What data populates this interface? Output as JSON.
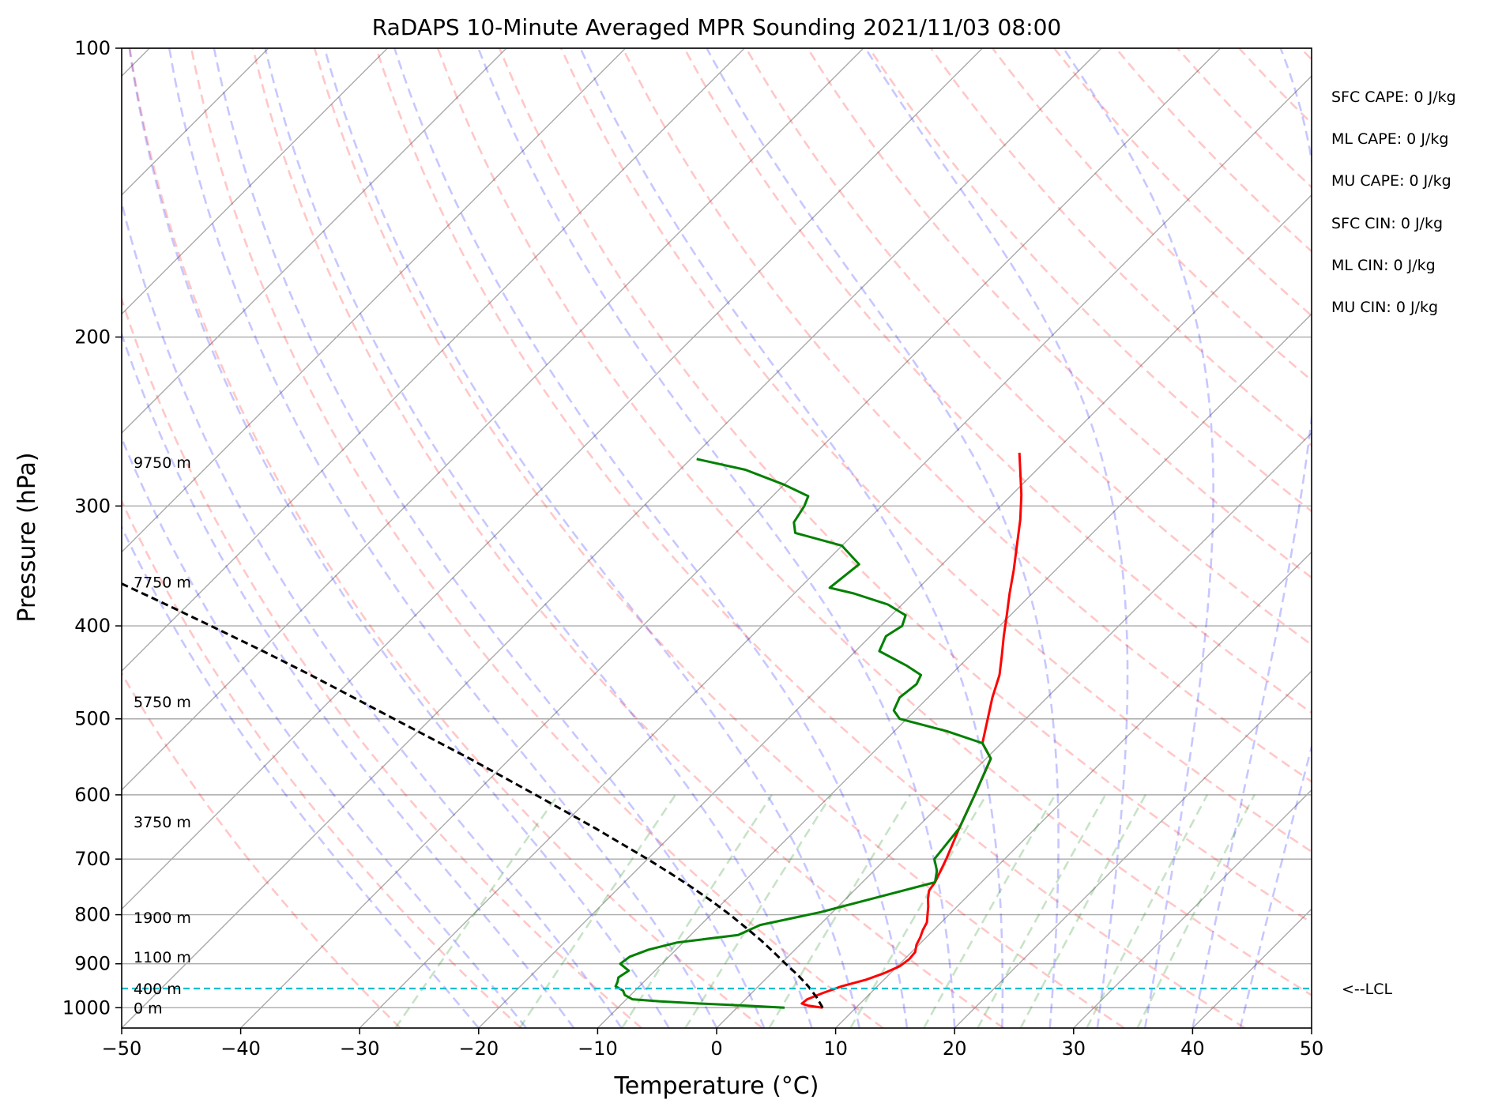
{
  "chart_data": {
    "type": "line",
    "title": "RaDAPS 10-Minute Averaged MPR Sounding 2021/11/03 08:00",
    "xlabel": "Temperature (°C)",
    "ylabel": "Pressure (hPa)",
    "xlim": [
      -50,
      50
    ],
    "ylim": [
      1050,
      100
    ],
    "y_scale": "log",
    "x_ticks": [
      "−50",
      "−40",
      "−30",
      "−20",
      "−10",
      "0",
      "10",
      "20",
      "30",
      "40",
      "50"
    ],
    "y_ticks": [
      "100",
      "200",
      "300",
      "400",
      "500",
      "600",
      "700",
      "800",
      "900",
      "1000"
    ],
    "grid": true,
    "skew": 45,
    "series": [
      {
        "color": "#ff0000",
        "points": [
          [
            7.2,
            1000
          ],
          [
            5.8,
            995
          ],
          [
            5.1,
            990
          ],
          [
            5.2,
            980
          ],
          [
            6.0,
            965
          ],
          [
            7.0,
            950
          ],
          [
            8.5,
            935
          ],
          [
            9.5,
            920
          ],
          [
            10.2,
            905
          ],
          [
            10.4,
            890
          ],
          [
            10.3,
            875
          ],
          [
            9.8,
            860
          ],
          [
            9.5,
            845
          ],
          [
            9.1,
            830
          ],
          [
            8.8,
            815
          ],
          [
            8.2,
            800
          ],
          [
            7.6,
            785
          ],
          [
            6.9,
            770
          ],
          [
            6.3,
            755
          ],
          [
            6.1,
            740
          ],
          [
            5.1,
            700
          ],
          [
            3.6,
            650
          ],
          [
            2.1,
            600
          ],
          [
            0.4,
            550
          ],
          [
            -1.6,
            530
          ],
          [
            -3.2,
            500
          ],
          [
            -4.6,
            475
          ],
          [
            -5.9,
            450
          ],
          [
            -7.3,
            430
          ],
          [
            -8.8,
            410
          ],
          [
            -10.3,
            390
          ],
          [
            -11.9,
            370
          ],
          [
            -13.5,
            350
          ],
          [
            -15.3,
            330
          ],
          [
            -17.2,
            310
          ],
          [
            -19.2,
            292
          ],
          [
            -21.0,
            278
          ],
          [
            -22.9,
            264
          ]
        ]
      },
      {
        "color": "#008000",
        "points": [
          [
            4.0,
            1000
          ],
          [
            0.5,
            995
          ],
          [
            -3.5,
            990
          ],
          [
            -7,
            985
          ],
          [
            -9.5,
            980
          ],
          [
            -10.5,
            970
          ],
          [
            -11.0,
            960
          ],
          [
            -12,
            950
          ],
          [
            -12.2,
            940
          ],
          [
            -12.5,
            930
          ],
          [
            -12.2,
            915
          ],
          [
            -13.5,
            900
          ],
          [
            -13.3,
            885
          ],
          [
            -12.3,
            870
          ],
          [
            -10.5,
            855
          ],
          [
            -6,
            840
          ],
          [
            -5.0,
            820
          ],
          [
            -1.0,
            795
          ],
          [
            6.1,
            740
          ],
          [
            5.3,
            720
          ],
          [
            4.1,
            700
          ],
          [
            3.6,
            650
          ],
          [
            2.1,
            600
          ],
          [
            0.4,
            550
          ],
          [
            -1.6,
            530
          ],
          [
            -5.6,
            515
          ],
          [
            -10.6,
            500
          ],
          [
            -11.8,
            490
          ],
          [
            -12.4,
            475
          ],
          [
            -12.1,
            460
          ],
          [
            -12.5,
            450
          ],
          [
            -14.5,
            440
          ],
          [
            -18.0,
            425
          ],
          [
            -18.7,
            410
          ],
          [
            -18.2,
            400
          ],
          [
            -18.8,
            390
          ],
          [
            -21.2,
            380
          ],
          [
            -25,
            370
          ],
          [
            -27.5,
            365
          ],
          [
            -27.0,
            345
          ],
          [
            -30.0,
            330
          ],
          [
            -35.0,
            320
          ],
          [
            -36,
            312
          ],
          [
            -36.5,
            300
          ],
          [
            -37.0,
            293
          ],
          [
            -40.0,
            285
          ],
          [
            -44.5,
            275
          ],
          [
            -49.5,
            268
          ]
        ]
      },
      {
        "color": "#000000",
        "dashed": true,
        "points": [
          [
            7.2,
            1000
          ],
          [
            5.8,
            975
          ],
          [
            4.2,
            950
          ],
          [
            2.4,
            925
          ],
          [
            0.4,
            900
          ],
          [
            -1.6,
            875
          ],
          [
            -3.7,
            850
          ],
          [
            -6.0,
            825
          ],
          [
            -8.4,
            800
          ],
          [
            -11.0,
            775
          ],
          [
            -13.8,
            750
          ],
          [
            -16.8,
            725
          ],
          [
            -20.0,
            700
          ],
          [
            -27.0,
            650
          ],
          [
            -34.8,
            600
          ],
          [
            -43.4,
            550
          ],
          [
            -53.1,
            500
          ],
          [
            -58.3,
            475
          ],
          [
            -63.8,
            450
          ],
          [
            -69.8,
            425
          ],
          [
            -76.3,
            400
          ],
          [
            -83.3,
            375
          ],
          [
            -90.9,
            350
          ],
          [
            -99.3,
            325
          ],
          [
            -108.5,
            300
          ],
          [
            -113.4,
            288
          ],
          [
            -118.0,
            277
          ],
          [
            -122.0,
            268
          ]
        ]
      }
    ],
    "height_labels": [
      {
        "text": "0 m",
        "p": 1000
      },
      {
        "text": "400 m",
        "p": 955
      },
      {
        "text": "1100 m",
        "p": 885
      },
      {
        "text": "1900 m",
        "p": 805
      },
      {
        "text": "3750 m",
        "p": 640
      },
      {
        "text": "5750 m",
        "p": 480
      },
      {
        "text": "7750 m",
        "p": 360
      },
      {
        "text": "9750 m",
        "p": 270
      }
    ],
    "lcl": {
      "p": 955,
      "label": "<--LCL"
    },
    "indices": [
      "SFC CAPE: 0 J/kg",
      "ML CAPE: 0 J/kg",
      "MU CAPE: 0 J/kg",
      "SFC CIN: 0 J/kg",
      "ML CIN: 0 J/kg",
      "MU CIN: 0 J/kg"
    ],
    "colors": {
      "isotherm": "#aaaaaa",
      "dry_adiabat": "#ff0000",
      "moist_adiabat": "#0000ff",
      "mixing_ratio": "#008000",
      "lcl_line": "#17becf"
    }
  }
}
